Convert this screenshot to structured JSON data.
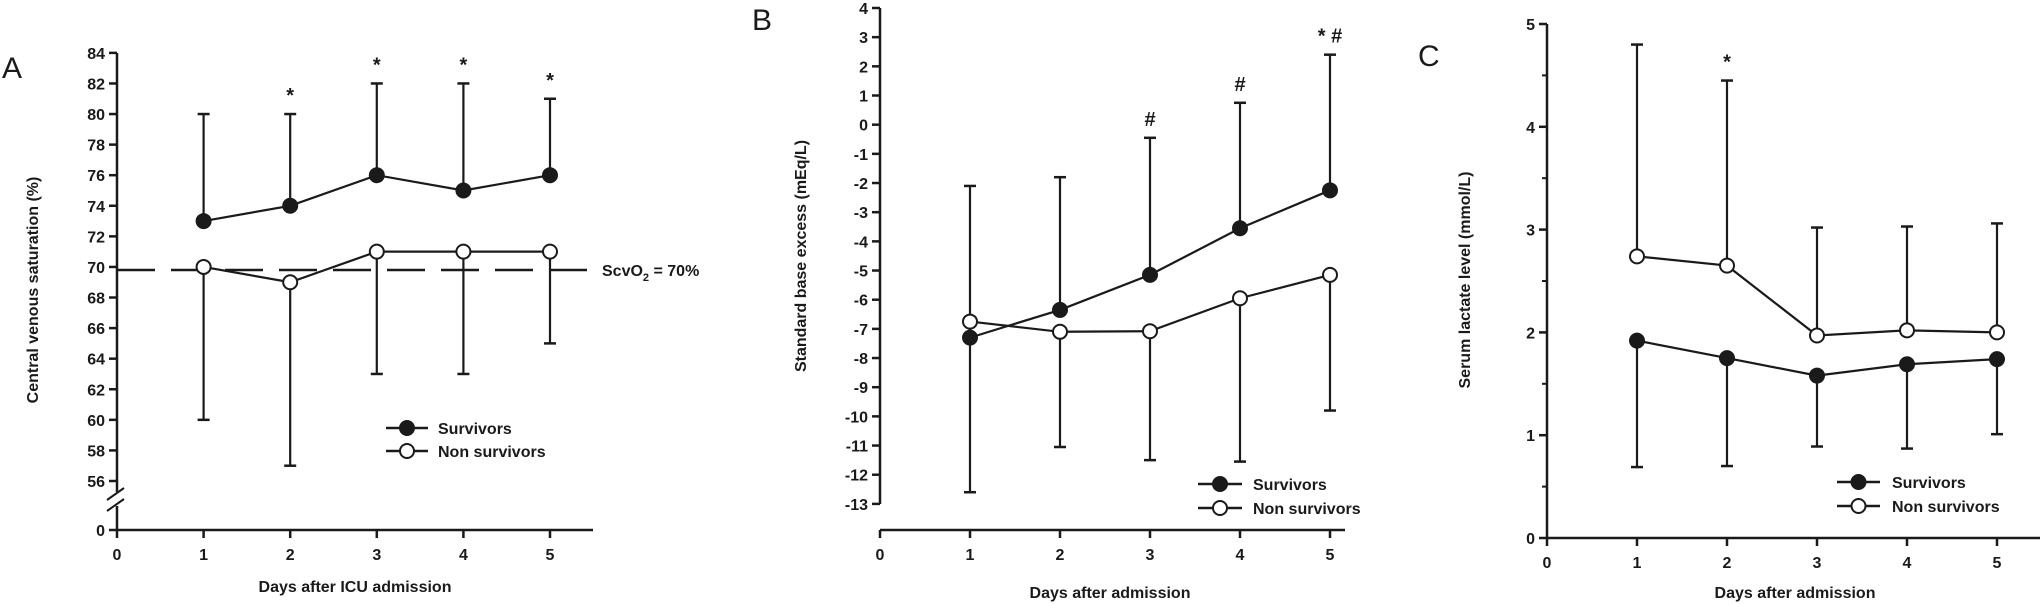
{
  "chart_data": [
    {
      "panel_label": "A",
      "type": "line",
      "xlabel": "Days after ICU admission",
      "ylabel": "Central venous saturation (%)",
      "x": [
        1,
        2,
        3,
        4,
        5
      ],
      "xticks": [
        0,
        1,
        2,
        3,
        4,
        5
      ],
      "yticks": [
        0,
        56,
        58,
        60,
        62,
        64,
        66,
        68,
        70,
        72,
        74,
        76,
        78,
        80,
        82,
        84
      ],
      "ylim": [
        56,
        84
      ],
      "axis_break": true,
      "series": [
        {
          "name": "Survivors",
          "marker": "filled-circle",
          "values": [
            73,
            74,
            76,
            75,
            76
          ],
          "error_upper": [
            80,
            80,
            82,
            82,
            81
          ]
        },
        {
          "name": "Non survivors",
          "marker": "open-circle",
          "values": [
            70,
            69,
            71,
            71,
            71
          ],
          "error_lower": [
            60,
            57,
            63,
            63,
            65
          ]
        }
      ],
      "reference_line": {
        "value": 69.8,
        "style": "dashed",
        "label": "ScvO",
        "label_sub": "2",
        "label_rest": " = 70%"
      },
      "significance": [
        {
          "x": 2,
          "mark": "*"
        },
        {
          "x": 3,
          "mark": "*"
        },
        {
          "x": 4,
          "mark": "*"
        },
        {
          "x": 5,
          "mark": "*"
        }
      ],
      "legend_position": "lower-right"
    },
    {
      "panel_label": "B",
      "type": "line",
      "xlabel": "Days after admission",
      "ylabel": "Standard base excess (mEq/L)",
      "x": [
        1,
        2,
        3,
        4,
        5
      ],
      "xticks": [
        0,
        1,
        2,
        3,
        4,
        5
      ],
      "yticks": [
        4,
        3,
        2,
        1,
        0,
        -1,
        -2,
        -3,
        -4,
        -5,
        -6,
        -7,
        -8,
        -9,
        -10,
        -11,
        -12,
        -13
      ],
      "ylim": [
        -13,
        4
      ],
      "series": [
        {
          "name": "Survivors",
          "marker": "filled-circle",
          "values": [
            -7.3,
            -6.35,
            -5.15,
            -3.55,
            -2.25
          ],
          "error_upper": [
            -2.1,
            -1.8,
            -0.45,
            0.75,
            2.4
          ]
        },
        {
          "name": "Non survivors",
          "marker": "open-circle",
          "values": [
            -6.75,
            -7.1,
            -7.08,
            -5.95,
            -5.15
          ],
          "error_lower": [
            -12.6,
            -11.05,
            -11.5,
            -11.55,
            -9.8
          ]
        }
      ],
      "significance": [
        {
          "x": 3,
          "mark": "#"
        },
        {
          "x": 4,
          "mark": "#"
        },
        {
          "x": 5,
          "mark": "* #"
        }
      ],
      "legend_position": "lower-right"
    },
    {
      "panel_label": "C",
      "type": "line",
      "xlabel": "Days after admission",
      "ylabel": "Serum lactate level (mmol/L)",
      "x": [
        1,
        2,
        3,
        4,
        5
      ],
      "xticks": [
        0,
        1,
        2,
        3,
        4,
        5
      ],
      "yticks": [
        0,
        1,
        2,
        3,
        4,
        5
      ],
      "yminor_step": 0.5,
      "ylim": [
        0,
        5
      ],
      "series": [
        {
          "name": "Survivors",
          "marker": "filled-circle",
          "values": [
            1.92,
            1.75,
            1.58,
            1.69,
            1.74
          ],
          "error_lower": [
            0.69,
            0.7,
            0.89,
            0.87,
            1.01
          ]
        },
        {
          "name": "Non survivors",
          "marker": "open-circle",
          "values": [
            2.74,
            2.65,
            1.97,
            2.02,
            2.0
          ],
          "error_upper": [
            4.8,
            4.45,
            3.02,
            3.03,
            3.06
          ]
        }
      ],
      "significance": [
        {
          "x": 2,
          "mark": "*"
        }
      ],
      "legend_position": "lower-right"
    }
  ],
  "colors": {
    "ink": "#1a1a1a",
    "background": "#ffffff"
  }
}
